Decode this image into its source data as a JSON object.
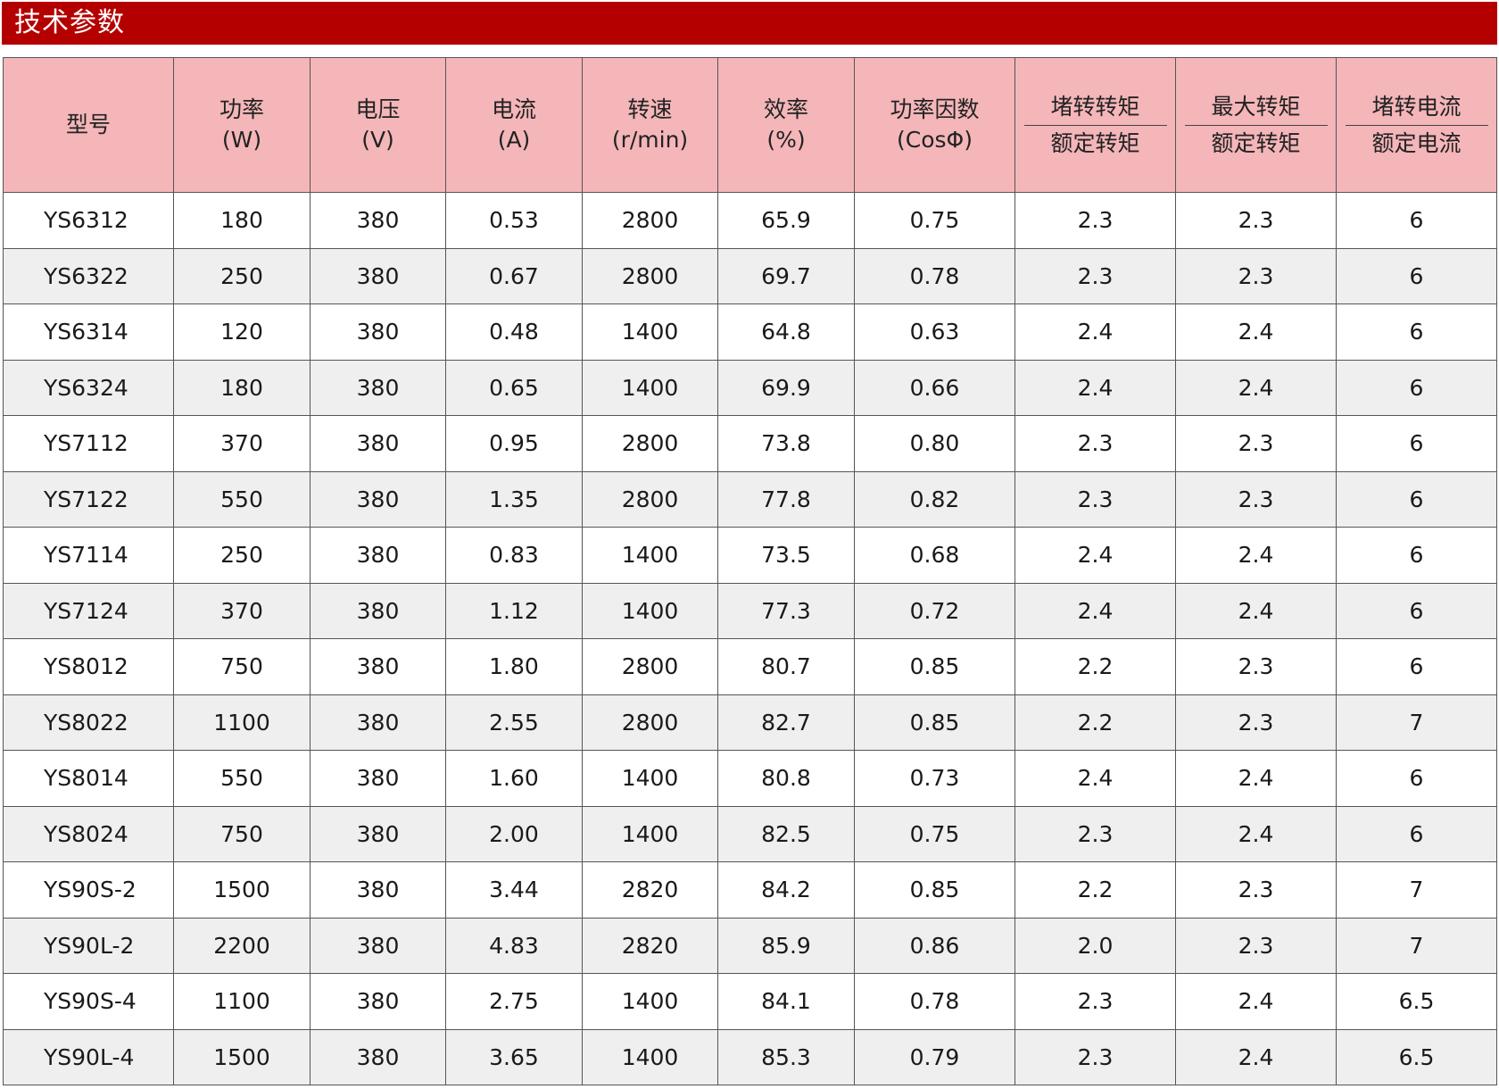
{
  "title": "技术参数",
  "header": {
    "col1": "型号",
    "col2": {
      "line1": "功率",
      "line2": "(W)"
    },
    "col3": {
      "line1": "电压",
      "line2": "(V)"
    },
    "col4": {
      "line1": "电流",
      "line2": "(A)"
    },
    "col5": {
      "line1": "转速",
      "line2": "(r/min)"
    },
    "col6": {
      "line1": "效率",
      "line2": "(%)"
    },
    "col7": {
      "line1": "功率因数",
      "line2": "(CosΦ)"
    },
    "col8": {
      "numerator": "堵转转矩",
      "denominator": "额定转矩"
    },
    "col9": {
      "numerator": "最大转矩",
      "denominator": "额定转矩"
    },
    "col10": {
      "numerator": "堵转电流",
      "denominator": "额定电流"
    }
  },
  "rows": [
    [
      "YS6312",
      "180",
      "380",
      "0.53",
      "2800",
      "65.9",
      "0.75",
      "2.3",
      "2.3",
      "6"
    ],
    [
      "YS6322",
      "250",
      "380",
      "0.67",
      "2800",
      "69.7",
      "0.78",
      "2.3",
      "2.3",
      "6"
    ],
    [
      "YS6314",
      "120",
      "380",
      "0.48",
      "1400",
      "64.8",
      "0.63",
      "2.4",
      "2.4",
      "6"
    ],
    [
      "YS6324",
      "180",
      "380",
      "0.65",
      "1400",
      "69.9",
      "0.66",
      "2.4",
      "2.4",
      "6"
    ],
    [
      "YS7112",
      "370",
      "380",
      "0.95",
      "2800",
      "73.8",
      "0.80",
      "2.3",
      "2.3",
      "6"
    ],
    [
      "YS7122",
      "550",
      "380",
      "1.35",
      "2800",
      "77.8",
      "0.82",
      "2.3",
      "2.3",
      "6"
    ],
    [
      "YS7114",
      "250",
      "380",
      "0.83",
      "1400",
      "73.5",
      "0.68",
      "2.4",
      "2.4",
      "6"
    ],
    [
      "YS7124",
      "370",
      "380",
      "1.12",
      "1400",
      "77.3",
      "0.72",
      "2.4",
      "2.4",
      "6"
    ],
    [
      "YS8012",
      "750",
      "380",
      "1.80",
      "2800",
      "80.7",
      "0.85",
      "2.2",
      "2.3",
      "6"
    ],
    [
      "YS8022",
      "1100",
      "380",
      "2.55",
      "2800",
      "82.7",
      "0.85",
      "2.2",
      "2.3",
      "7"
    ],
    [
      "YS8014",
      "550",
      "380",
      "1.60",
      "1400",
      "80.8",
      "0.73",
      "2.4",
      "2.4",
      "6"
    ],
    [
      "YS8024",
      "750",
      "380",
      "2.00",
      "1400",
      "82.5",
      "0.75",
      "2.3",
      "2.4",
      "6"
    ],
    [
      "YS90S-2",
      "1500",
      "380",
      "3.44",
      "2820",
      "84.2",
      "0.85",
      "2.2",
      "2.3",
      "7"
    ],
    [
      "YS90L-2",
      "2200",
      "380",
      "4.83",
      "2820",
      "85.9",
      "0.86",
      "2.0",
      "2.3",
      "7"
    ],
    [
      "YS90S-4",
      "1100",
      "380",
      "2.75",
      "1400",
      "84.1",
      "0.78",
      "2.3",
      "2.4",
      "6.5"
    ],
    [
      "YS90L-4",
      "1500",
      "380",
      "3.65",
      "1400",
      "85.3",
      "0.79",
      "2.3",
      "2.4",
      "6.5"
    ]
  ],
  "colors": {
    "title_bar": "#b50000",
    "header_bg": "#f4b6b9",
    "row_alt_bg": "#efefef",
    "border": "#555555"
  }
}
